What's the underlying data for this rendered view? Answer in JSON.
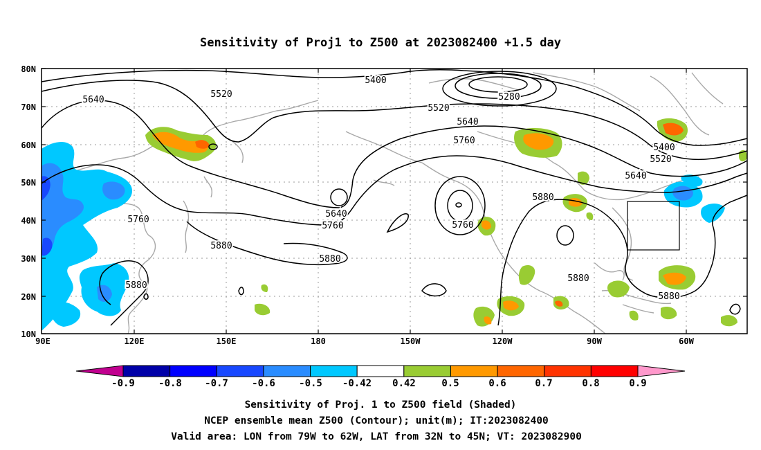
{
  "title": "Sensitivity of Proj1 to Z500 at 2023082400 +1.5 day",
  "lat_labels": [
    "80N",
    "70N",
    "60N",
    "50N",
    "40N",
    "30N",
    "20N",
    "10N"
  ],
  "lon_labels": [
    "90E",
    "120E",
    "150E",
    "180",
    "150W",
    "120W",
    "90W",
    "60W"
  ],
  "contour_labels": [
    "5400",
    "5280",
    "5520",
    "5640",
    "5520",
    "5640",
    "5760",
    "5400",
    "5520",
    "5640",
    "5640",
    "5760",
    "5760",
    "5880",
    "5760",
    "5880",
    "5880",
    "5880",
    "5880",
    "5880"
  ],
  "colorbar": {
    "labels": [
      "-0.9",
      "-0.8",
      "-0.7",
      "-0.6",
      "-0.5",
      "-0.42",
      "0.42",
      "0.5",
      "0.6",
      "0.7",
      "0.8",
      "0.9"
    ],
    "colors": [
      "#c1008f",
      "#0000a8",
      "#0000ff",
      "#1848ff",
      "#2a8cff",
      "#00c8ff",
      "#ffffff",
      "#99cc33",
      "#ff9900",
      "#ff6600",
      "#ff3300",
      "#ff0000",
      "#ff99cc"
    ]
  },
  "footer": [
    "Sensitivity of Proj. 1 to Z500 field (Shaded)",
    "NCEP ensemble mean Z500 (Contour); unit(m); IT:2023082400",
    "Valid area: LON from 79W to 62W, LAT from 32N to 45N; VT: 2023082900"
  ]
}
